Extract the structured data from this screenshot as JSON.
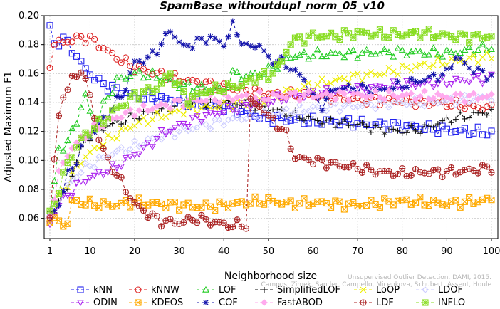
{
  "chart_data": {
    "type": "line",
    "title": "SpamBase_withoutdupl_norm_05_v10",
    "xlabel": "Neighborhood size",
    "ylabel": "Adjusted Maximum F1",
    "xlim": [
      1,
      100
    ],
    "ylim": [
      0.05,
      0.2
    ],
    "x_ticks": [
      1,
      10,
      20,
      30,
      40,
      50,
      60,
      70,
      80,
      90,
      100
    ],
    "y_ticks": [
      0.06,
      0.08,
      0.1,
      0.12,
      0.14,
      0.16,
      0.18,
      0.2
    ],
    "y_tick_labels": [
      "0.06",
      "0.08",
      "0.10",
      "0.12",
      "0.14",
      "0.16",
      "0.18",
      "0.20"
    ],
    "legend_position": "bottom",
    "watermark": [
      "Unsupervised Outlier Detection. DAMI, 2015.",
      "Campos, Zimek, Sander, Campello, Micenkova, Schubert, Assent, Houle"
    ],
    "series": [
      {
        "name": "kNN",
        "color": "#2222ee",
        "marker": "square",
        "knots": [
          [
            1,
            0.192
          ],
          [
            2,
            0.18
          ],
          [
            4,
            0.184
          ],
          [
            6,
            0.177
          ],
          [
            8,
            0.167
          ],
          [
            10,
            0.16
          ],
          [
            12,
            0.154
          ],
          [
            15,
            0.15
          ],
          [
            20,
            0.145
          ],
          [
            30,
            0.141
          ],
          [
            40,
            0.137
          ],
          [
            50,
            0.129
          ],
          [
            60,
            0.127
          ],
          [
            70,
            0.126
          ],
          [
            80,
            0.124
          ],
          [
            90,
            0.121
          ],
          [
            100,
            0.119
          ]
        ]
      },
      {
        "name": "kNNW",
        "color": "#dd2222",
        "marker": "circle",
        "knots": [
          [
            1,
            0.167
          ],
          [
            2,
            0.18
          ],
          [
            4,
            0.182
          ],
          [
            6,
            0.183
          ],
          [
            8,
            0.185
          ],
          [
            10,
            0.184
          ],
          [
            12,
            0.18
          ],
          [
            15,
            0.173
          ],
          [
            20,
            0.164
          ],
          [
            30,
            0.156
          ],
          [
            40,
            0.151
          ],
          [
            50,
            0.146
          ],
          [
            60,
            0.145
          ],
          [
            70,
            0.142
          ],
          [
            80,
            0.141
          ],
          [
            90,
            0.139
          ],
          [
            100,
            0.136
          ]
        ]
      },
      {
        "name": "LOF",
        "color": "#22cc22",
        "marker": "triangle",
        "knots": [
          [
            1,
            0.06
          ],
          [
            3,
            0.108
          ],
          [
            5,
            0.112
          ],
          [
            7,
            0.128
          ],
          [
            9,
            0.145
          ],
          [
            11,
            0.122
          ],
          [
            13,
            0.138
          ],
          [
            16,
            0.155
          ],
          [
            20,
            0.16
          ],
          [
            25,
            0.158
          ],
          [
            30,
            0.152
          ],
          [
            35,
            0.15
          ],
          [
            40,
            0.148
          ],
          [
            42,
            0.16
          ],
          [
            45,
            0.158
          ],
          [
            50,
            0.162
          ],
          [
            55,
            0.172
          ],
          [
            60,
            0.173
          ],
          [
            70,
            0.174
          ],
          [
            80,
            0.175
          ],
          [
            90,
            0.174
          ],
          [
            100,
            0.178
          ]
        ]
      },
      {
        "name": "SimplifiedLOF",
        "color": "#111111",
        "marker": "plus",
        "knots": [
          [
            1,
            0.062
          ],
          [
            3,
            0.072
          ],
          [
            5,
            0.08
          ],
          [
            7,
            0.1
          ],
          [
            9,
            0.114
          ],
          [
            11,
            0.12
          ],
          [
            14,
            0.124
          ],
          [
            18,
            0.128
          ],
          [
            22,
            0.132
          ],
          [
            26,
            0.135
          ],
          [
            30,
            0.139
          ],
          [
            35,
            0.14
          ],
          [
            40,
            0.14
          ],
          [
            45,
            0.139
          ],
          [
            50,
            0.136
          ],
          [
            55,
            0.132
          ],
          [
            60,
            0.128
          ],
          [
            65,
            0.126
          ],
          [
            70,
            0.125
          ],
          [
            75,
            0.121
          ],
          [
            80,
            0.12
          ],
          [
            85,
            0.122
          ],
          [
            90,
            0.128
          ],
          [
            95,
            0.131
          ],
          [
            100,
            0.134
          ]
        ]
      },
      {
        "name": "LoOP",
        "color": "#eeee00",
        "marker": "cross",
        "knots": [
          [
            1,
            0.058
          ],
          [
            3,
            0.074
          ],
          [
            5,
            0.085
          ],
          [
            8,
            0.1
          ],
          [
            12,
            0.11
          ],
          [
            16,
            0.118
          ],
          [
            20,
            0.125
          ],
          [
            25,
            0.13
          ],
          [
            30,
            0.134
          ],
          [
            35,
            0.136
          ],
          [
            40,
            0.138
          ],
          [
            45,
            0.14
          ],
          [
            50,
            0.142
          ],
          [
            55,
            0.148
          ],
          [
            60,
            0.152
          ],
          [
            65,
            0.155
          ],
          [
            70,
            0.158
          ],
          [
            75,
            0.16
          ],
          [
            80,
            0.163
          ],
          [
            85,
            0.166
          ],
          [
            90,
            0.168
          ],
          [
            95,
            0.17
          ],
          [
            100,
            0.172
          ]
        ]
      },
      {
        "name": "LDOF",
        "color": "#ccccff",
        "marker": "diamond",
        "knots": [
          [
            1,
            0.06
          ],
          [
            3,
            0.072
          ],
          [
            5,
            0.082
          ],
          [
            8,
            0.093
          ],
          [
            12,
            0.1
          ],
          [
            16,
            0.106
          ],
          [
            20,
            0.11
          ],
          [
            25,
            0.116
          ],
          [
            30,
            0.12
          ],
          [
            35,
            0.124
          ],
          [
            40,
            0.127
          ],
          [
            45,
            0.13
          ],
          [
            50,
            0.132
          ],
          [
            55,
            0.134
          ],
          [
            60,
            0.136
          ],
          [
            65,
            0.137
          ],
          [
            70,
            0.138
          ],
          [
            75,
            0.139
          ],
          [
            80,
            0.14
          ],
          [
            85,
            0.14
          ],
          [
            90,
            0.141
          ],
          [
            95,
            0.142
          ],
          [
            100,
            0.144
          ]
        ]
      },
      {
        "name": "ODIN",
        "color": "#aa22ee",
        "marker": "triangle-down",
        "knots": [
          [
            1,
            0.056
          ],
          [
            3,
            0.07
          ],
          [
            5,
            0.076
          ],
          [
            7,
            0.082
          ],
          [
            9,
            0.087
          ],
          [
            11,
            0.089
          ],
          [
            13,
            0.092
          ],
          [
            15,
            0.094
          ],
          [
            18,
            0.1
          ],
          [
            20,
            0.104
          ],
          [
            23,
            0.11
          ],
          [
            26,
            0.118
          ],
          [
            30,
            0.124
          ],
          [
            35,
            0.13
          ],
          [
            40,
            0.134
          ],
          [
            45,
            0.138
          ],
          [
            50,
            0.141
          ],
          [
            55,
            0.144
          ],
          [
            60,
            0.146
          ],
          [
            65,
            0.148
          ],
          [
            70,
            0.149
          ],
          [
            75,
            0.151
          ],
          [
            80,
            0.152
          ],
          [
            85,
            0.153
          ],
          [
            90,
            0.154
          ],
          [
            95,
            0.156
          ],
          [
            100,
            0.157
          ]
        ]
      },
      {
        "name": "KDEOS",
        "color": "#ffaa00",
        "marker": "square-x",
        "knots": [
          [
            1,
            0.06
          ],
          [
            2,
            0.058
          ],
          [
            3,
            0.057
          ],
          [
            4,
            0.057
          ],
          [
            5,
            0.056
          ],
          [
            6,
            0.072
          ],
          [
            10,
            0.07
          ],
          [
            15,
            0.069
          ],
          [
            20,
            0.071
          ],
          [
            25,
            0.07
          ],
          [
            30,
            0.069
          ],
          [
            35,
            0.068
          ],
          [
            40,
            0.069
          ],
          [
            45,
            0.071
          ],
          [
            50,
            0.072
          ],
          [
            55,
            0.07
          ],
          [
            60,
            0.071
          ],
          [
            70,
            0.069
          ],
          [
            80,
            0.072
          ],
          [
            90,
            0.07
          ],
          [
            100,
            0.073
          ]
        ]
      },
      {
        "name": "COF",
        "color": "#1111aa",
        "marker": "asterisk",
        "knots": [
          [
            1,
            0.06
          ],
          [
            3,
            0.07
          ],
          [
            5,
            0.09
          ],
          [
            7,
            0.1
          ],
          [
            9,
            0.115
          ],
          [
            11,
            0.12
          ],
          [
            13,
            0.128
          ],
          [
            15,
            0.136
          ],
          [
            18,
            0.15
          ],
          [
            20,
            0.168
          ],
          [
            23,
            0.17
          ],
          [
            26,
            0.18
          ],
          [
            28,
            0.19
          ],
          [
            31,
            0.178
          ],
          [
            34,
            0.182
          ],
          [
            37,
            0.185
          ],
          [
            40,
            0.18
          ],
          [
            42,
            0.193
          ],
          [
            45,
            0.178
          ],
          [
            48,
            0.18
          ],
          [
            50,
            0.17
          ],
          [
            53,
            0.168
          ],
          [
            55,
            0.164
          ],
          [
            58,
            0.156
          ],
          [
            60,
            0.144
          ],
          [
            62,
            0.138
          ],
          [
            65,
            0.15
          ],
          [
            70,
            0.15
          ],
          [
            75,
            0.148
          ],
          [
            80,
            0.152
          ],
          [
            85,
            0.156
          ],
          [
            90,
            0.16
          ],
          [
            92,
            0.172
          ],
          [
            95,
            0.164
          ],
          [
            100,
            0.158
          ]
        ]
      },
      {
        "name": "FastABOD",
        "color": "#ffaaee",
        "marker": "diamond-filled",
        "knots": [
          [
            1,
            0.062
          ],
          [
            3,
            0.09
          ],
          [
            5,
            0.105
          ],
          [
            8,
            0.115
          ],
          [
            12,
            0.124
          ],
          [
            16,
            0.13
          ],
          [
            20,
            0.134
          ],
          [
            25,
            0.137
          ],
          [
            30,
            0.14
          ],
          [
            35,
            0.142
          ],
          [
            40,
            0.143
          ],
          [
            45,
            0.144
          ],
          [
            50,
            0.144
          ],
          [
            55,
            0.145
          ],
          [
            60,
            0.145
          ],
          [
            70,
            0.145
          ],
          [
            80,
            0.145
          ],
          [
            90,
            0.144
          ],
          [
            100,
            0.144
          ]
        ]
      },
      {
        "name": "LDF",
        "color": "#aa2222",
        "marker": "circle-plus",
        "knots": [
          [
            1,
            0.06
          ],
          [
            2,
            0.1
          ],
          [
            3,
            0.13
          ],
          [
            4,
            0.145
          ],
          [
            6,
            0.155
          ],
          [
            8,
            0.163
          ],
          [
            10,
            0.145
          ],
          [
            12,
            0.115
          ],
          [
            14,
            0.1
          ],
          [
            16,
            0.09
          ],
          [
            18,
            0.08
          ],
          [
            20,
            0.07
          ],
          [
            23,
            0.063
          ],
          [
            26,
            0.058
          ],
          [
            30,
            0.057
          ],
          [
            34,
            0.06
          ],
          [
            38,
            0.057
          ],
          [
            42,
            0.055
          ],
          [
            44,
            0.056
          ],
          [
            45,
            0.055
          ],
          [
            46,
            0.14
          ],
          [
            48,
            0.138
          ],
          [
            50,
            0.13
          ],
          [
            52,
            0.125
          ],
          [
            54,
            0.118
          ],
          [
            56,
            0.102
          ],
          [
            60,
            0.1
          ],
          [
            65,
            0.097
          ],
          [
            70,
            0.095
          ],
          [
            75,
            0.092
          ],
          [
            80,
            0.091
          ],
          [
            85,
            0.092
          ],
          [
            90,
            0.092
          ],
          [
            95,
            0.093
          ],
          [
            100,
            0.095
          ]
        ]
      },
      {
        "name": "INFLO",
        "color": "#88dd22",
        "marker": "square-asterisk",
        "knots": [
          [
            1,
            0.062
          ],
          [
            3,
            0.08
          ],
          [
            5,
            0.098
          ],
          [
            8,
            0.115
          ],
          [
            12,
            0.125
          ],
          [
            14,
            0.13
          ],
          [
            16,
            0.136
          ],
          [
            18,
            0.14
          ],
          [
            20,
            0.145
          ],
          [
            25,
            0.15
          ],
          [
            28,
            0.16
          ],
          [
            32,
            0.142
          ],
          [
            36,
            0.148
          ],
          [
            40,
            0.15
          ],
          [
            44,
            0.152
          ],
          [
            48,
            0.158
          ],
          [
            50,
            0.158
          ],
          [
            53,
            0.168
          ],
          [
            55,
            0.182
          ],
          [
            60,
            0.186
          ],
          [
            65,
            0.186
          ],
          [
            70,
            0.188
          ],
          [
            75,
            0.187
          ],
          [
            80,
            0.187
          ],
          [
            85,
            0.188
          ],
          [
            90,
            0.186
          ],
          [
            95,
            0.185
          ],
          [
            100,
            0.186
          ]
        ]
      }
    ]
  }
}
